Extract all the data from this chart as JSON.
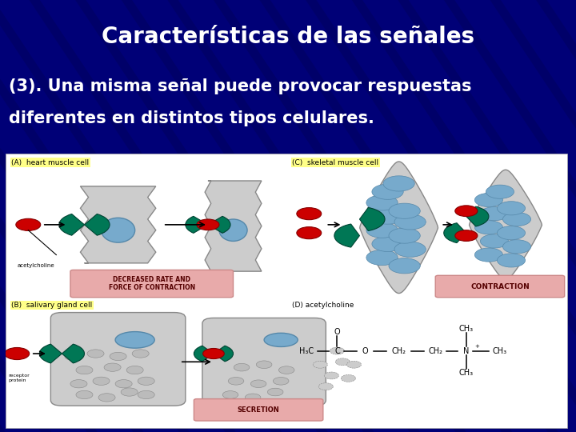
{
  "title": "Características de las señales",
  "subtitle_line1": "(3). Una misma señal puede provocar respuestas",
  "subtitle_line2": "diferentes en distintos tipos celulares.",
  "bg_color": "#000077",
  "bg_dark": "#000044",
  "title_color": "#FFFFFF",
  "subtitle_color": "#FFFFFF",
  "title_fontsize": 20,
  "subtitle_fontsize": 15,
  "red": "#CC0000",
  "green_receptor": "#007755",
  "cyan_blue": "#77AACC",
  "pink_box": "#E8AAAA",
  "yellow_label": "#FFFF88",
  "gray_cell": "#CCCCCC",
  "figsize": [
    7.2,
    5.4
  ],
  "dpi": 100
}
